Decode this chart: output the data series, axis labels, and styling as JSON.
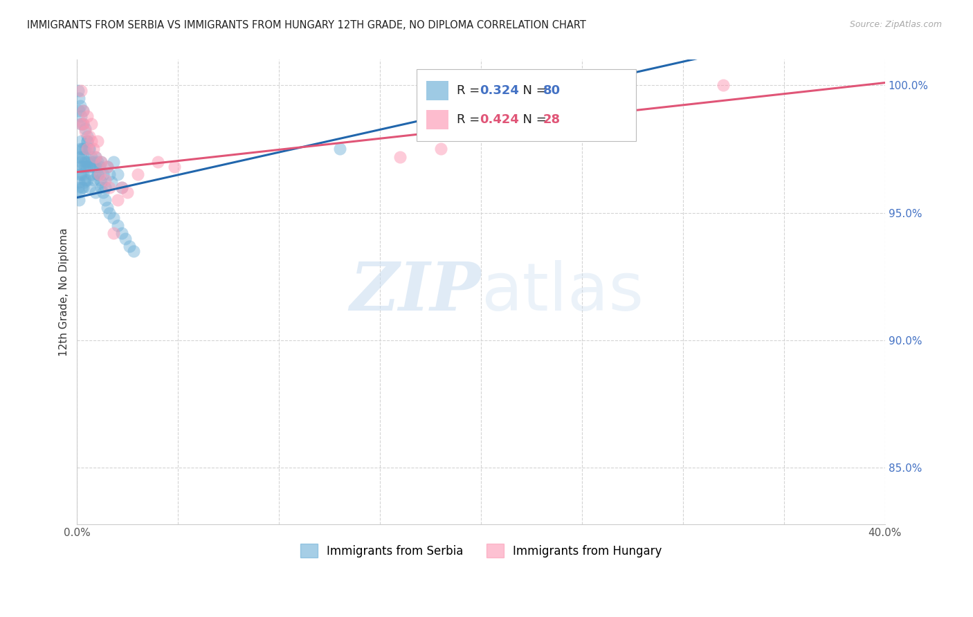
{
  "title": "IMMIGRANTS FROM SERBIA VS IMMIGRANTS FROM HUNGARY 12TH GRADE, NO DIPLOMA CORRELATION CHART",
  "source": "Source: ZipAtlas.com",
  "ylabel": "12th Grade, No Diploma",
  "xmin": 0.0,
  "xmax": 0.4,
  "ymin": 0.828,
  "ymax": 1.01,
  "xticks": [
    0.0,
    0.05,
    0.1,
    0.15,
    0.2,
    0.25,
    0.3,
    0.35,
    0.4
  ],
  "yticks": [
    0.85,
    0.9,
    0.95,
    1.0
  ],
  "serbia_R": 0.324,
  "serbia_N": 80,
  "hungary_R": 0.424,
  "hungary_N": 28,
  "serbia_color": "#6baed6",
  "hungary_color": "#fc99b4",
  "serbia_line_color": "#2166ac",
  "hungary_line_color": "#e05577",
  "legend_serbia": "Immigrants from Serbia",
  "legend_hungary": "Immigrants from Hungary",
  "serbia_x": [
    0.0005,
    0.0008,
    0.001,
    0.001,
    0.001,
    0.0012,
    0.0015,
    0.0015,
    0.0018,
    0.002,
    0.002,
    0.002,
    0.0022,
    0.0025,
    0.0025,
    0.003,
    0.003,
    0.003,
    0.003,
    0.0035,
    0.0035,
    0.004,
    0.004,
    0.004,
    0.0045,
    0.005,
    0.005,
    0.005,
    0.006,
    0.006,
    0.006,
    0.007,
    0.007,
    0.008,
    0.008,
    0.009,
    0.009,
    0.01,
    0.01,
    0.011,
    0.012,
    0.012,
    0.013,
    0.014,
    0.015,
    0.016,
    0.017,
    0.018,
    0.02,
    0.022,
    0.0005,
    0.001,
    0.001,
    0.0015,
    0.002,
    0.002,
    0.003,
    0.003,
    0.004,
    0.005,
    0.005,
    0.006,
    0.007,
    0.008,
    0.009,
    0.01,
    0.011,
    0.012,
    0.013,
    0.014,
    0.015,
    0.016,
    0.018,
    0.02,
    0.022,
    0.024,
    0.026,
    0.028,
    0.13,
    0.22
  ],
  "serbia_y": [
    0.96,
    0.955,
    0.962,
    0.958,
    0.972,
    0.965,
    0.968,
    0.975,
    0.97,
    0.972,
    0.965,
    0.978,
    0.96,
    0.975,
    0.968,
    0.972,
    0.965,
    0.96,
    0.975,
    0.968,
    0.962,
    0.97,
    0.963,
    0.975,
    0.968,
    0.97,
    0.963,
    0.978,
    0.968,
    0.96,
    0.975,
    0.965,
    0.97,
    0.968,
    0.963,
    0.972,
    0.958,
    0.965,
    0.97,
    0.968,
    0.962,
    0.97,
    0.965,
    0.96,
    0.968,
    0.965,
    0.962,
    0.97,
    0.965,
    0.96,
    0.998,
    0.995,
    0.99,
    0.992,
    0.988,
    0.985,
    0.99,
    0.985,
    0.983,
    0.98,
    0.978,
    0.975,
    0.972,
    0.97,
    0.968,
    0.965,
    0.963,
    0.96,
    0.958,
    0.955,
    0.952,
    0.95,
    0.948,
    0.945,
    0.942,
    0.94,
    0.937,
    0.935,
    0.975,
    0.99
  ],
  "hungary_x": [
    0.002,
    0.002,
    0.003,
    0.003,
    0.004,
    0.005,
    0.005,
    0.006,
    0.007,
    0.007,
    0.008,
    0.009,
    0.01,
    0.011,
    0.012,
    0.014,
    0.015,
    0.016,
    0.018,
    0.02,
    0.022,
    0.025,
    0.03,
    0.04,
    0.048,
    0.16,
    0.18,
    0.32
  ],
  "hungary_y": [
    0.985,
    0.998,
    0.985,
    0.99,
    0.982,
    0.975,
    0.988,
    0.98,
    0.978,
    0.985,
    0.975,
    0.972,
    0.978,
    0.965,
    0.97,
    0.963,
    0.968,
    0.96,
    0.942,
    0.955,
    0.96,
    0.958,
    0.965,
    0.97,
    0.968,
    0.972,
    0.975,
    1.0
  ],
  "watermark_zip": "ZIP",
  "watermark_atlas": "atlas",
  "background_color": "#ffffff",
  "grid_color": "#d0d0d0"
}
